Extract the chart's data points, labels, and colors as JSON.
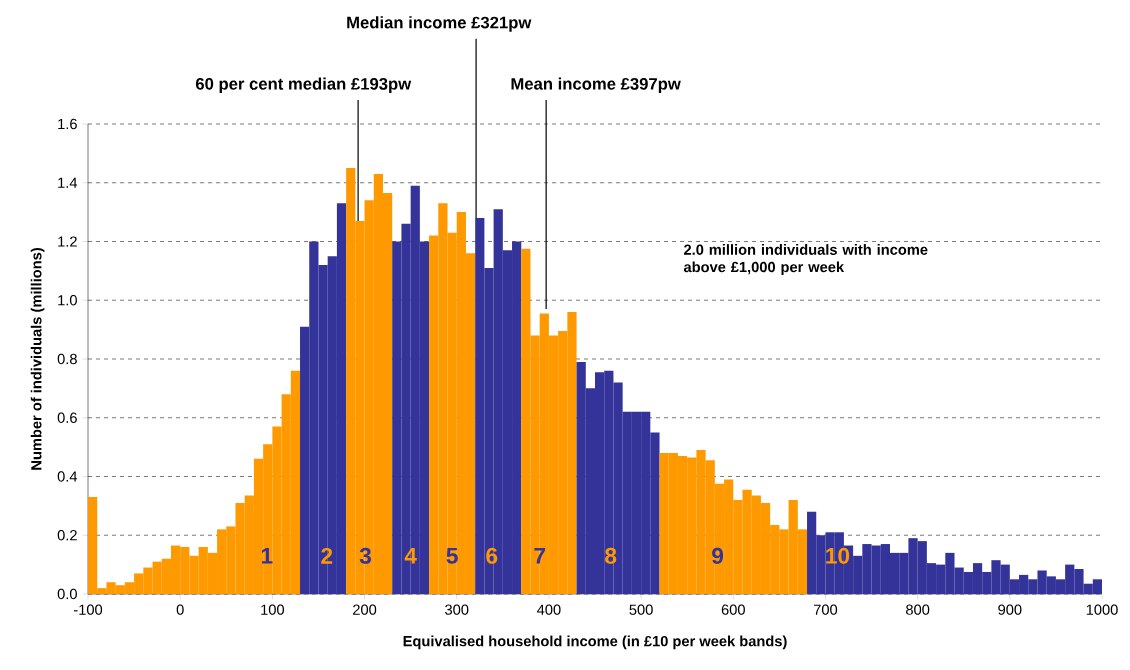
{
  "chart_data": {
    "type": "histogram",
    "xlabel": "Equivalised household income (in £10 per week bands)",
    "ylabel": "Number of individuals (millions)",
    "bins": [
      -100,
      -90,
      -80,
      -70,
      -60,
      -50,
      -40,
      -30,
      -20,
      -10,
      0,
      10,
      20,
      30,
      40,
      50,
      60,
      70,
      80,
      90,
      100,
      110,
      120,
      130,
      140,
      150,
      160,
      170,
      180,
      190,
      200,
      210,
      220,
      230,
      240,
      250,
      260,
      270,
      280,
      290,
      300,
      310,
      320,
      330,
      340,
      350,
      360,
      370,
      380,
      390,
      400,
      410,
      420,
      430,
      440,
      450,
      460,
      470,
      480,
      490,
      500,
      510,
      520,
      530,
      540,
      550,
      560,
      570,
      580,
      590,
      600,
      610,
      620,
      630,
      640,
      650,
      660,
      670,
      680,
      690,
      700,
      710,
      720,
      730,
      740,
      750,
      760,
      770,
      780,
      790,
      800,
      810,
      820,
      830,
      840,
      850,
      860,
      870,
      880,
      890,
      900,
      910,
      920,
      930,
      940,
      950,
      960,
      970,
      980,
      990,
      1000
    ],
    "values": [
      0.33,
      0.02,
      0.04,
      0.03,
      0.04,
      0.07,
      0.09,
      0.11,
      0.12,
      0.165,
      0.16,
      0.13,
      0.16,
      0.14,
      0.22,
      0.23,
      0.31,
      0.335,
      0.46,
      0.51,
      0.57,
      0.68,
      0.76,
      0.91,
      1.2,
      1.12,
      1.15,
      1.33,
      1.45,
      1.27,
      1.34,
      1.43,
      1.365,
      1.2,
      1.26,
      1.39,
      1.2,
      1.22,
      1.33,
      1.23,
      1.3,
      1.16,
      1.28,
      1.11,
      1.31,
      1.17,
      1.2,
      1.175,
      0.88,
      0.955,
      0.88,
      0.895,
      0.96,
      0.79,
      0.7,
      0.755,
      0.76,
      0.72,
      0.62,
      0.62,
      0.62,
      0.55,
      0.48,
      0.48,
      0.47,
      0.465,
      0.49,
      0.455,
      0.375,
      0.39,
      0.32,
      0.355,
      0.335,
      0.31,
      0.235,
      0.22,
      0.32,
      0.22,
      0.28,
      0.2,
      0.21,
      0.21,
      0.165,
      0.13,
      0.17,
      0.165,
      0.17,
      0.14,
      0.14,
      0.19,
      0.18,
      0.105,
      0.1,
      0.14,
      0.09,
      0.075,
      0.105,
      0.075,
      0.115,
      0.1,
      0.05,
      0.065,
      0.05,
      0.08,
      0.06,
      0.05,
      0.1,
      0.085,
      0.035,
      0.05
    ],
    "colors": [
      "#ff9900",
      "#ff9900",
      "#ff9900",
      "#ff9900",
      "#ff9900",
      "#ff9900",
      "#ff9900",
      "#ff9900",
      "#ff9900",
      "#ff9900",
      "#ff9900",
      "#ff9900",
      "#ff9900",
      "#ff9900",
      "#ff9900",
      "#ff9900",
      "#ff9900",
      "#ff9900",
      "#ff9900",
      "#ff9900",
      "#ff9900",
      "#ff9900",
      "#ff9900",
      "#333399",
      "#333399",
      "#333399",
      "#333399",
      "#333399",
      "#ff9900",
      "#ff9900",
      "#ff9900",
      "#ff9900",
      "#ff9900",
      "#333399",
      "#333399",
      "#333399",
      "#333399",
      "#ff9900",
      "#ff9900",
      "#ff9900",
      "#ff9900",
      "#ff9900",
      "#333399",
      "#333399",
      "#333399",
      "#333399",
      "#333399",
      "#ff9900",
      "#ff9900",
      "#ff9900",
      "#ff9900",
      "#ff9900",
      "#ff9900",
      "#333399",
      "#333399",
      "#333399",
      "#333399",
      "#333399",
      "#333399",
      "#333399",
      "#333399",
      "#333399",
      "#ff9900",
      "#ff9900",
      "#ff9900",
      "#ff9900",
      "#ff9900",
      "#ff9900",
      "#ff9900",
      "#ff9900",
      "#ff9900",
      "#ff9900",
      "#ff9900",
      "#ff9900",
      "#ff9900",
      "#ff9900",
      "#ff9900",
      "#ff9900",
      "#333399",
      "#333399",
      "#333399",
      "#333399",
      "#333399",
      "#333399",
      "#333399",
      "#333399",
      "#333399",
      "#333399",
      "#333399",
      "#333399",
      "#333399",
      "#333399",
      "#333399",
      "#333399",
      "#333399",
      "#333399",
      "#333399",
      "#333399",
      "#333399",
      "#333399",
      "#333399",
      "#333399",
      "#333399",
      "#333399",
      "#333399",
      "#333399",
      "#333399",
      "#333399",
      "#333399",
      "#333399"
    ],
    "xlim": [
      -100,
      1000
    ],
    "xticks": [
      -100,
      0,
      100,
      200,
      300,
      400,
      500,
      600,
      700,
      800,
      900,
      1000
    ],
    "ylim": [
      0,
      1.6
    ],
    "yticks": [
      {
        "value": 0,
        "label": "0.0"
      },
      0.2,
      0.4,
      0.6,
      0.8,
      {
        "value": 1,
        "label": "1.0"
      },
      1.2,
      1.4,
      1.6
    ],
    "grid": "y",
    "annotations": [
      {
        "text": "60 per cent median £193pw",
        "x": 193,
        "y": 1.27
      },
      {
        "text": "Median income £321pw",
        "x": 321,
        "y": 1.28
      },
      {
        "text": "Mean income £397pw",
        "x": 397,
        "y": 0.97
      },
      "2.0 million individuals with income above £1,000 per week",
      {
        "text": "1",
        "x": 94,
        "y": 0.13
      },
      {
        "text": "2",
        "x": 159,
        "y": 0.13
      },
      {
        "text": "3",
        "x": 201,
        "y": 0.13
      },
      {
        "text": "4",
        "x": 250,
        "y": 0.13
      },
      {
        "text": "5",
        "x": 295,
        "y": 0.13
      },
      {
        "text": "6",
        "x": 338,
        "y": 0.13
      },
      {
        "text": "7",
        "x": 390,
        "y": 0.13
      },
      {
        "text": "8",
        "x": 467,
        "y": 0.13
      },
      {
        "text": "9",
        "x": 583,
        "y": 0.13
      },
      {
        "text": "10",
        "x": 713,
        "y": 0.13
      }
    ]
  }
}
